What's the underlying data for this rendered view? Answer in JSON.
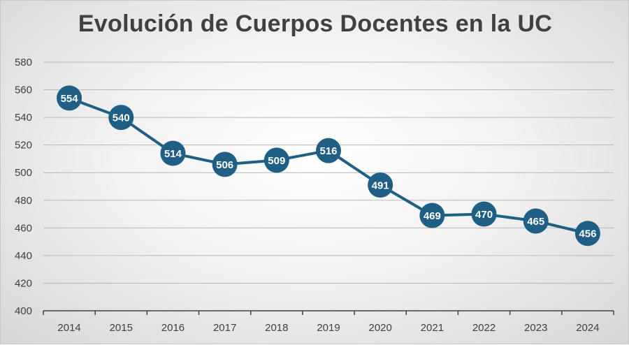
{
  "colors": {
    "series": "#1f5f85",
    "grid": "#b8b8b8",
    "axis": "#404040",
    "title": "#404040"
  },
  "chart_data": {
    "type": "line",
    "title": "Evolución de Cuerpos Docentes en la UC",
    "xlabel": "",
    "ylabel": "",
    "ylim": [
      400,
      580
    ],
    "yticks": [
      400,
      420,
      440,
      460,
      480,
      500,
      520,
      540,
      560,
      580
    ],
    "grid": true,
    "legend": "none",
    "categories": [
      "2014",
      "2015",
      "2016",
      "2017",
      "2018",
      "2019",
      "2020",
      "2021",
      "2022",
      "2023",
      "2024"
    ],
    "series": [
      {
        "values": [
          554,
          540,
          514,
          506,
          509,
          516,
          491,
          469,
          470,
          465,
          456
        ]
      }
    ]
  }
}
